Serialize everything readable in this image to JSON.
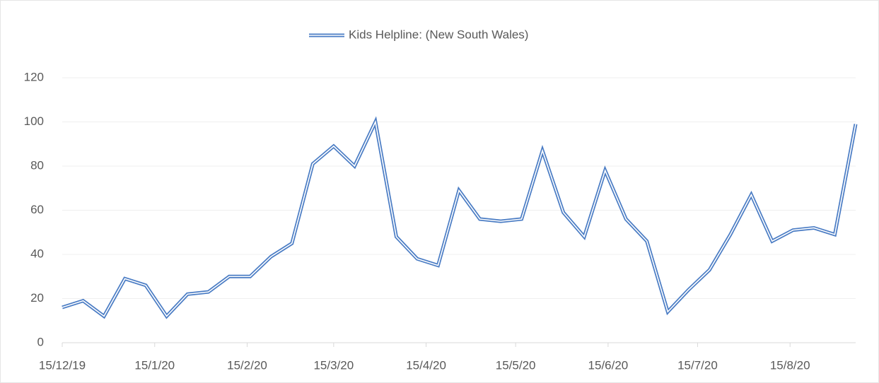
{
  "chart_data": {
    "type": "line",
    "x": [
      "2019-12-15",
      "2019-12-22",
      "2019-12-29",
      "2020-01-05",
      "2020-01-12",
      "2020-01-19",
      "2020-01-26",
      "2020-02-02",
      "2020-02-09",
      "2020-02-16",
      "2020-02-23",
      "2020-03-01",
      "2020-03-08",
      "2020-03-15",
      "2020-03-22",
      "2020-03-29",
      "2020-04-05",
      "2020-04-12",
      "2020-04-19",
      "2020-04-26",
      "2020-05-03",
      "2020-05-10",
      "2020-05-17",
      "2020-05-24",
      "2020-05-31",
      "2020-06-07",
      "2020-06-14",
      "2020-06-21",
      "2020-06-28",
      "2020-07-05",
      "2020-07-12",
      "2020-07-19",
      "2020-07-26",
      "2020-08-02",
      "2020-08-09",
      "2020-08-16",
      "2020-08-23",
      "2020-08-30",
      "2020-09-06"
    ],
    "series": [
      {
        "name": "Kids Helpline: (New South Wales)",
        "color": "#4a7cc4",
        "values": [
          16,
          19,
          12,
          29,
          26,
          12,
          22,
          23,
          30,
          30,
          39,
          45,
          81,
          89,
          80,
          100,
          48,
          38,
          35,
          69,
          56,
          55,
          56,
          87,
          59,
          48,
          78,
          56,
          46,
          14,
          24,
          33,
          49,
          67,
          46,
          51,
          52,
          49,
          99
        ]
      }
    ],
    "xlim": [
      "2019-12-15",
      "2020-09-06"
    ],
    "xticks": [
      {
        "value": "2019-12-15",
        "label": "15/12/19"
      },
      {
        "value": "2020-01-15",
        "label": "15/1/20"
      },
      {
        "value": "2020-02-15",
        "label": "15/2/20"
      },
      {
        "value": "2020-03-15",
        "label": "15/3/20"
      },
      {
        "value": "2020-04-15",
        "label": "15/4/20"
      },
      {
        "value": "2020-05-15",
        "label": "15/5/20"
      },
      {
        "value": "2020-06-15",
        "label": "15/6/20"
      },
      {
        "value": "2020-07-15",
        "label": "15/7/20"
      },
      {
        "value": "2020-08-15",
        "label": "15/8/20"
      }
    ],
    "ylim": [
      0,
      120
    ],
    "yticks": [
      0,
      20,
      40,
      60,
      80,
      100,
      120
    ],
    "grid": true,
    "legend": "top"
  }
}
